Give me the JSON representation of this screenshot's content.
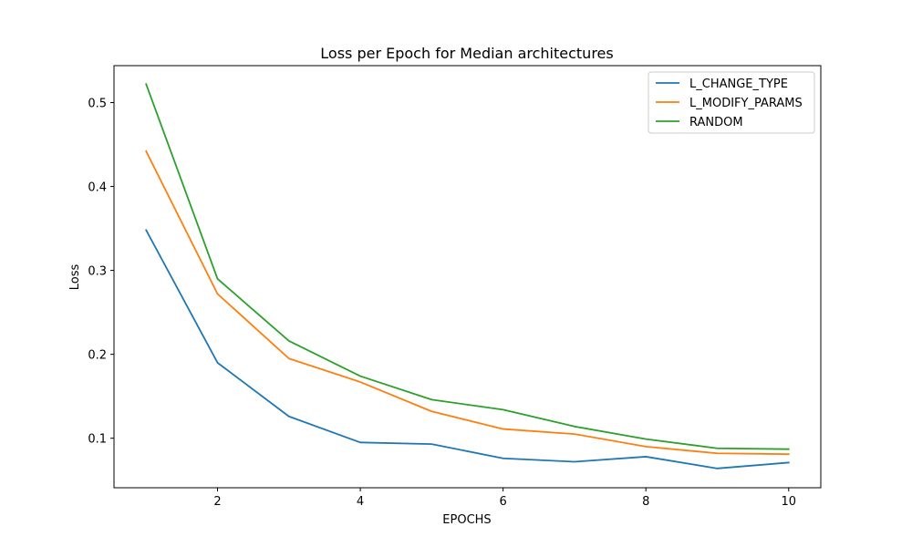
{
  "chart_data": {
    "type": "line",
    "title": "Loss per Epoch for Median architectures",
    "xlabel": "EPOCHS",
    "ylabel": "Loss",
    "x": [
      1,
      2,
      3,
      4,
      5,
      6,
      7,
      8,
      9,
      10
    ],
    "xticks": [
      2,
      4,
      6,
      8,
      10
    ],
    "yticks": [
      0.1,
      0.2,
      0.3,
      0.4,
      0.5
    ],
    "xlim": [
      0.55,
      10.45
    ],
    "ylim": [
      0.041,
      0.544
    ],
    "grid": false,
    "legend_position": "top-right",
    "series": [
      {
        "name": "L_CHANGE_TYPE",
        "color": "#1f77b4",
        "values": [
          0.348,
          0.19,
          0.126,
          0.095,
          0.093,
          0.076,
          0.072,
          0.078,
          0.064,
          0.071
        ]
      },
      {
        "name": "L_MODIFY_PARAMS",
        "color": "#ff7f0e",
        "values": [
          0.442,
          0.272,
          0.195,
          0.167,
          0.132,
          0.111,
          0.105,
          0.09,
          0.082,
          0.081
        ]
      },
      {
        "name": "RANDOM",
        "color": "#2ca02c",
        "values": [
          0.522,
          0.29,
          0.216,
          0.174,
          0.146,
          0.134,
          0.114,
          0.099,
          0.088,
          0.087
        ]
      }
    ]
  }
}
